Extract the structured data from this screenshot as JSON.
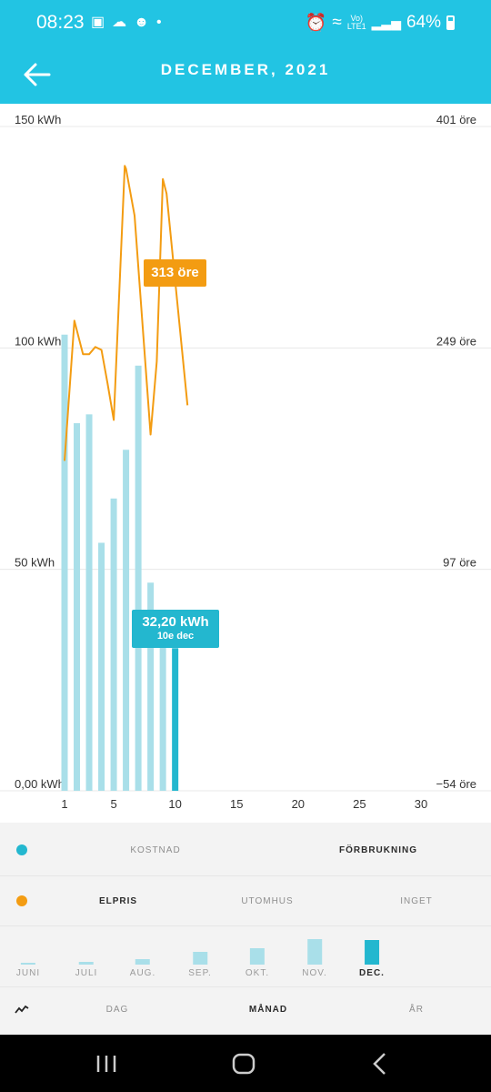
{
  "status_bar": {
    "time": "08:23",
    "battery": "64%",
    "network": "Vo)\nLTE1"
  },
  "header": {
    "title": "DECEMBER, 2021"
  },
  "chart_data": {
    "type": "bar",
    "x_ticks": [
      1,
      5,
      10,
      15,
      20,
      25,
      30
    ],
    "y_left_ticks": [
      "0,00 kWh",
      "50 kWh",
      "100 kWh",
      "150 kWh"
    ],
    "y_right_ticks": [
      "−54 öre",
      "97 öre",
      "249 öre",
      "401 öre"
    ],
    "ylim_left": [
      0,
      150
    ],
    "ylim_right": [
      -54,
      401
    ],
    "series": [
      {
        "name": "Förbrukning",
        "unit": "kWh",
        "days": [
          1,
          2,
          3,
          4,
          5,
          6,
          7,
          8,
          9,
          10
        ],
        "values": [
          103,
          83,
          85,
          56,
          66,
          77,
          96,
          47,
          34,
          32.2
        ]
      },
      {
        "name": "Elpris",
        "unit": "öre",
        "days": [
          1,
          1.8,
          2.5,
          3,
          3.5,
          4,
          4.5,
          5,
          5.9,
          6,
          6.7,
          7.3,
          8,
          8.5,
          9,
          9.3,
          10,
          11
        ],
        "values": [
          172,
          268,
          245,
          245,
          250,
          248,
          225,
          200,
          374,
          372,
          340,
          270,
          190,
          240,
          365,
          355,
          295,
          210
        ]
      }
    ],
    "highlight": {
      "day": 10
    },
    "tooltip_price": "313 öre",
    "tooltip_kwh_value": "32,20 kWh",
    "tooltip_kwh_date": "10e dec",
    "colors": {
      "bar": "#a9dfe9",
      "bar_highlight": "#23b7cf",
      "line": "#f39c12"
    }
  },
  "options": {
    "row1": {
      "dot_color": "#23b7cf",
      "items": [
        "KOSTNAD",
        "FÖRBRUKNING"
      ],
      "active": "FÖRBRUKNING"
    },
    "row2": {
      "dot_color": "#f39c12",
      "items": [
        "ELPRIS",
        "UTOMHUS",
        "INGET"
      ],
      "active": "ELPRIS"
    },
    "months": {
      "labels": [
        "JUNI",
        "JULI",
        "AUG.",
        "SEP.",
        "OKT.",
        "NOV.",
        "DEC."
      ],
      "levels": [
        0.05,
        0.12,
        0.2,
        0.5,
        0.65,
        1.0,
        0.95
      ],
      "active": "DEC."
    },
    "row4": {
      "items": [
        "DAG",
        "MÅNAD",
        "ÅR"
      ],
      "active": "MÅNAD"
    }
  }
}
